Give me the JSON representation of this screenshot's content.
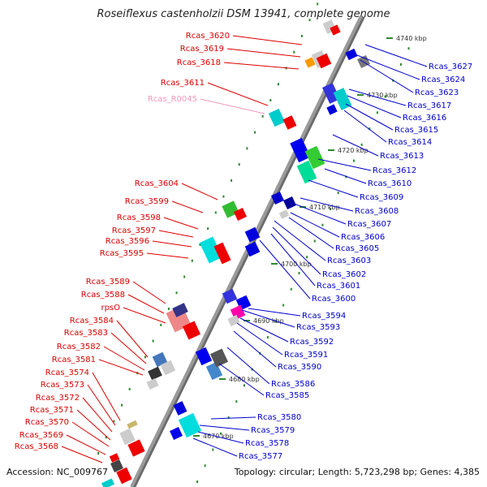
{
  "title": "Roseiflexus castenholzii DSM 13941, complete genome",
  "accession": "Accession: NC_009767",
  "summary": "Topology: circular; Length: 5,723,298 bp; Genes: 4,385",
  "colors": {
    "left_labels": "#dd0000",
    "right_labels": "#0000cc",
    "rna_label": "#ee99bb",
    "backbone": "#9a9a9a"
  },
  "scale_marks": [
    "4740 kbp",
    "4730 kbp",
    "4720 kbp",
    "4710 kbp",
    "4700 kbp",
    "4690 kbp",
    "4680 kbp",
    "4670 kbp"
  ],
  "left_labels": [
    "Rcas_3620",
    "Rcas_3619",
    "Rcas_3618",
    "Rcas_3611",
    "Rcas_R0045",
    "Rcas_3604",
    "Rcas_3599",
    "Rcas_3598",
    "Rcas_3597",
    "Rcas_3596",
    "Rcas_3595",
    "Rcas_3589",
    "Rcas_3588",
    "rpsO",
    "Rcas_3584",
    "Rcas_3583",
    "Rcas_3582",
    "Rcas_3581",
    "Rcas_3574",
    "Rcas_3573",
    "Rcas_3572",
    "Rcas_3571",
    "Rcas_3570",
    "Rcas_3569",
    "Rcas_3568"
  ],
  "right_labels": [
    "Rcas_3627",
    "Rcas_3624",
    "Rcas_3623",
    "Rcas_3617",
    "Rcas_3616",
    "Rcas_3615",
    "Rcas_3614",
    "Rcas_3613",
    "Rcas_3612",
    "Rcas_3610",
    "Rcas_3609",
    "Rcas_3608",
    "Rcas_3607",
    "Rcas_3606",
    "Rcas_3605",
    "Rcas_3603",
    "Rcas_3602",
    "Rcas_3601",
    "Rcas_3600",
    "Rcas_3594",
    "Rcas_3593",
    "Rcas_3592",
    "Rcas_3591",
    "Rcas_3590",
    "Rcas_3586",
    "Rcas_3585",
    "Rcas_3580",
    "Rcas_3579",
    "Rcas_3578",
    "Rcas_3577"
  ]
}
